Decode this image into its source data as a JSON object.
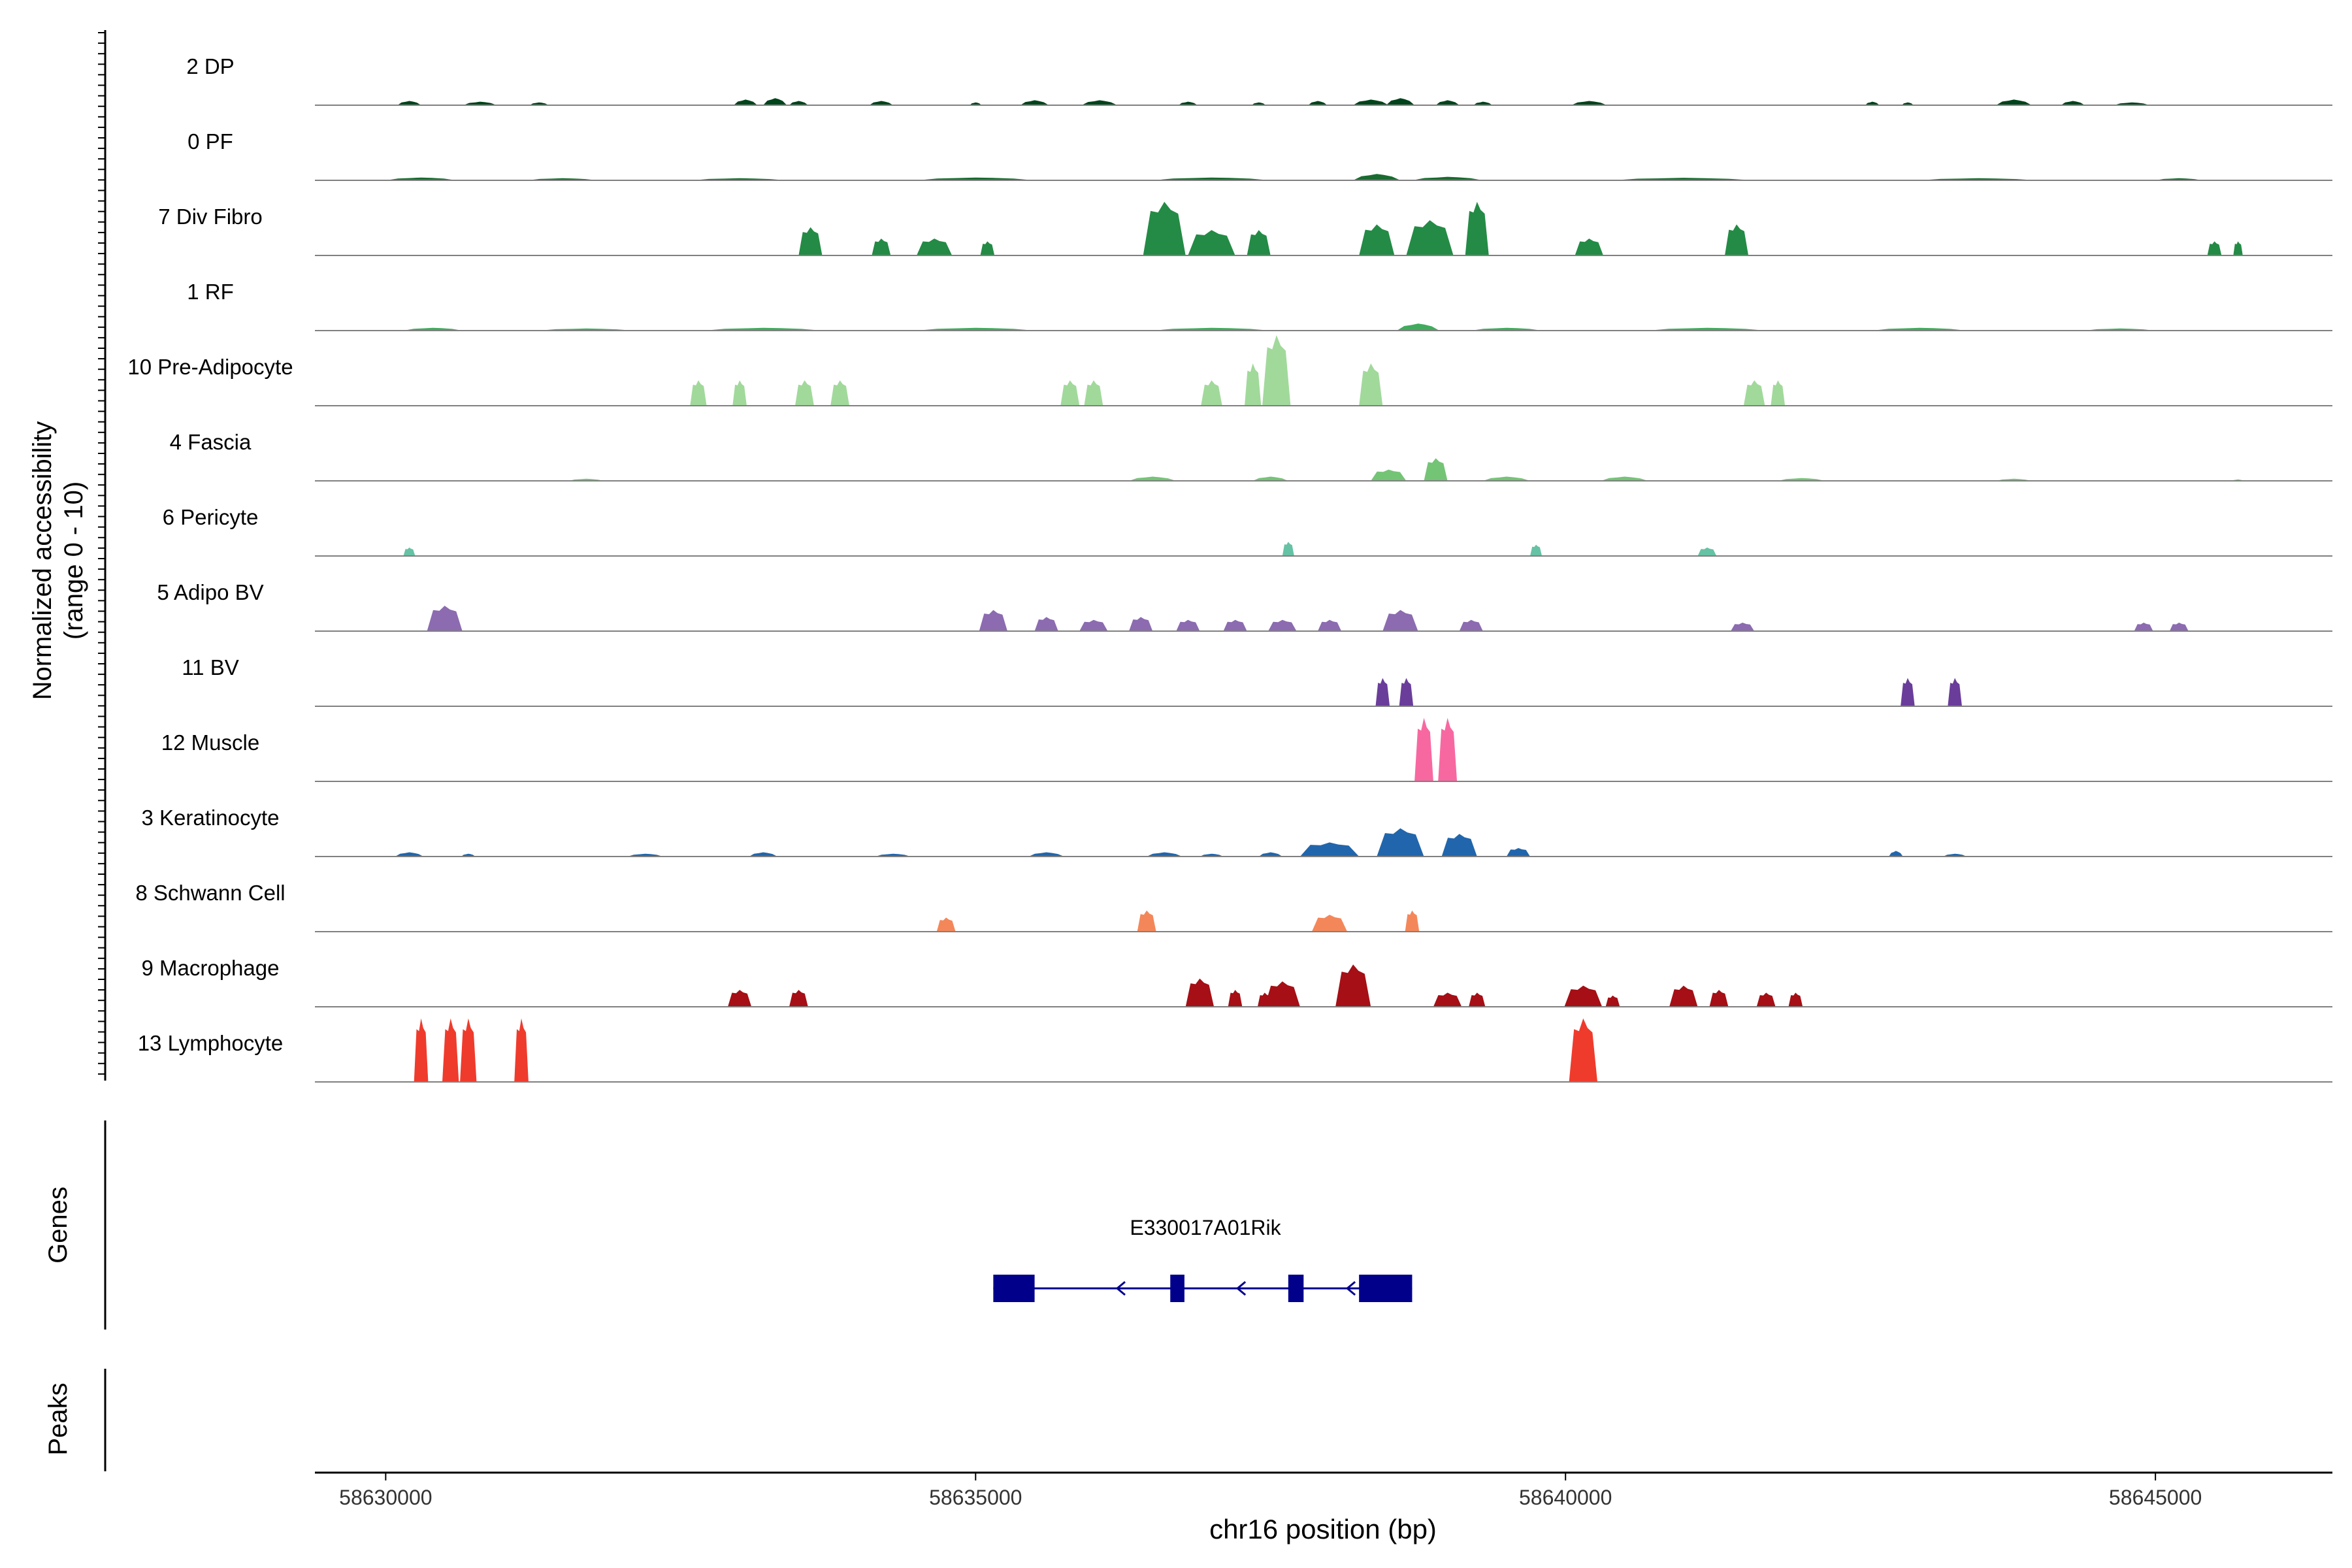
{
  "chart_data": {
    "type": "area",
    "y_axis_label_line1": "Normalized accessibility",
    "y_axis_label_line2": "(range 0 - 10)",
    "x_axis_label": "chr16 position (bp)",
    "xlim": [
      58629400,
      58646500
    ],
    "x_ticks": [
      58630000,
      58635000,
      58640000,
      58645000
    ],
    "x_tick_labels": [
      "58630000",
      "58635000",
      "58640000",
      "58645000"
    ],
    "ylim": [
      0,
      10
    ],
    "tracks": [
      {
        "name": "2 DP",
        "color": "#00441B",
        "peaks": [
          [
            58630200,
            3,
            1
          ],
          [
            58630800,
            2.5,
            1.4
          ],
          [
            58631300,
            2,
            0.8
          ],
          [
            58633050,
            4,
            1
          ],
          [
            58633300,
            5,
            1
          ],
          [
            58633500,
            3,
            0.8
          ],
          [
            58634200,
            3,
            1
          ],
          [
            58635000,
            2,
            0.5
          ],
          [
            58635500,
            3.5,
            1.2
          ],
          [
            58636050,
            3.5,
            1.5
          ],
          [
            58636800,
            2.5,
            0.8
          ],
          [
            58637400,
            2,
            0.6
          ],
          [
            58637900,
            3,
            0.8
          ],
          [
            58638350,
            4,
            1.5
          ],
          [
            58638600,
            5,
            1.2
          ],
          [
            58639000,
            3.5,
            1
          ],
          [
            58639300,
            2.5,
            0.8
          ],
          [
            58640200,
            3,
            1.5
          ],
          [
            58642600,
            2.5,
            0.6
          ],
          [
            58642900,
            2,
            0.5
          ],
          [
            58643800,
            4,
            1.5
          ],
          [
            58644300,
            3,
            1
          ],
          [
            58644800,
            2,
            1.5
          ]
        ]
      },
      {
        "name": "0 PF",
        "color": "#1A6B30",
        "peaks": [
          [
            58630300,
            2,
            3
          ],
          [
            58631500,
            1.5,
            3
          ],
          [
            58633000,
            1.5,
            4
          ],
          [
            58635000,
            2,
            5
          ],
          [
            58637000,
            2,
            5
          ],
          [
            58638400,
            4.5,
            2
          ],
          [
            58639000,
            2.5,
            3
          ],
          [
            58641000,
            1.8,
            6
          ],
          [
            58643500,
            1.5,
            5
          ],
          [
            58645200,
            1.5,
            2
          ]
        ]
      },
      {
        "name": "7 Div Fibro",
        "color": "#238B45",
        "peaks": [
          [
            58633600,
            20,
            1
          ],
          [
            58634200,
            12,
            0.8
          ],
          [
            58634650,
            12,
            1.5
          ],
          [
            58635100,
            10,
            0.6
          ],
          [
            58636600,
            38,
            1.8
          ],
          [
            58637000,
            18,
            2
          ],
          [
            58637400,
            18,
            1
          ],
          [
            58638400,
            22,
            1.5
          ],
          [
            58638850,
            25,
            2
          ],
          [
            58639250,
            38,
            1
          ],
          [
            58640200,
            12,
            1.2
          ],
          [
            58641450,
            22,
            1
          ],
          [
            58645500,
            10,
            0.6
          ],
          [
            58645700,
            10,
            0.4
          ]
        ]
      },
      {
        "name": "1 RF",
        "color": "#41AB5D",
        "peaks": [
          [
            58630400,
            2,
            2.5
          ],
          [
            58631700,
            1.5,
            4
          ],
          [
            58633200,
            2,
            5
          ],
          [
            58635000,
            2,
            5
          ],
          [
            58637000,
            2,
            5
          ],
          [
            58638750,
            5,
            1.8
          ],
          [
            58639500,
            2,
            3
          ],
          [
            58641200,
            2,
            5
          ],
          [
            58643000,
            2,
            4
          ],
          [
            58644700,
            1.5,
            3
          ]
        ]
      },
      {
        "name": "10 Pre-Adipocyte",
        "color": "#A1D99B",
        "peaks": [
          [
            58632650,
            18,
            0.7
          ],
          [
            58633000,
            18,
            0.6
          ],
          [
            58633550,
            18,
            0.8
          ],
          [
            58633850,
            18,
            0.8
          ],
          [
            58635800,
            18,
            0.8
          ],
          [
            58636000,
            18,
            0.8
          ],
          [
            58637000,
            18,
            0.9
          ],
          [
            58637350,
            30,
            0.7
          ],
          [
            58637550,
            50,
            1.2
          ],
          [
            58638350,
            30,
            1
          ],
          [
            58641600,
            18,
            0.9
          ],
          [
            58641800,
            18,
            0.6
          ]
        ]
      },
      {
        "name": "4 Fascia",
        "color": "#74C476",
        "peaks": [
          [
            58631700,
            1.5,
            1.5
          ],
          [
            58636500,
            3,
            2
          ],
          [
            58637500,
            3,
            1.5
          ],
          [
            58638500,
            8,
            1.5
          ],
          [
            58638900,
            16,
            1
          ],
          [
            58639500,
            3,
            2
          ],
          [
            58640500,
            3,
            2
          ],
          [
            58642000,
            2,
            2
          ],
          [
            58643800,
            1.5,
            1.5
          ],
          [
            58645700,
            1,
            0.5
          ]
        ]
      },
      {
        "name": "6 Pericyte",
        "color": "#66C2A4",
        "peaks": [
          [
            58630200,
            6,
            0.5
          ],
          [
            58637650,
            10,
            0.5
          ],
          [
            58639750,
            8,
            0.5
          ],
          [
            58641200,
            6,
            0.8
          ]
        ]
      },
      {
        "name": "5 Adipo BV",
        "color": "#8C6BB1",
        "peaks": [
          [
            58630500,
            18,
            1.5
          ],
          [
            58635150,
            15,
            1.2
          ],
          [
            58635600,
            10,
            1
          ],
          [
            58636000,
            8,
            1.2
          ],
          [
            58636400,
            10,
            1
          ],
          [
            58636800,
            8,
            1
          ],
          [
            58637200,
            8,
            1
          ],
          [
            58637600,
            8,
            1.2
          ],
          [
            58638000,
            8,
            1
          ],
          [
            58638600,
            15,
            1.5
          ],
          [
            58639200,
            8,
            1
          ],
          [
            58641500,
            6,
            1
          ],
          [
            58644900,
            6,
            0.8
          ],
          [
            58645200,
            6,
            0.8
          ]
        ]
      },
      {
        "name": "11 BV",
        "color": "#6A3D9A",
        "peaks": [
          [
            58638450,
            20,
            0.6
          ],
          [
            58638650,
            20,
            0.6
          ],
          [
            58642900,
            20,
            0.6
          ],
          [
            58643300,
            20,
            0.6
          ]
        ]
      },
      {
        "name": "12 Muscle",
        "color": "#F768A1",
        "peaks": [
          [
            58638800,
            45,
            0.8
          ],
          [
            58639000,
            45,
            0.8
          ]
        ]
      },
      {
        "name": "3 Keratinocyte",
        "color": "#2166AC",
        "peaks": [
          [
            58630200,
            3,
            1.2
          ],
          [
            58630700,
            2,
            0.6
          ],
          [
            58632200,
            2,
            1.5
          ],
          [
            58633200,
            3,
            1.2
          ],
          [
            58634300,
            2,
            1.5
          ],
          [
            58635600,
            3,
            1.5
          ],
          [
            58636600,
            3,
            1.5
          ],
          [
            58637000,
            2,
            1
          ],
          [
            58637500,
            3,
            1
          ],
          [
            58638000,
            10,
            2.5
          ],
          [
            58638600,
            20,
            2
          ],
          [
            58639100,
            16,
            1.5
          ],
          [
            58639600,
            6,
            1
          ],
          [
            58642800,
            4,
            0.6
          ],
          [
            58643300,
            2,
            1
          ]
        ]
      },
      {
        "name": "8 Schwann Cell",
        "color": "#F4875A",
        "peaks": [
          [
            58634750,
            10,
            0.8
          ],
          [
            58636450,
            15,
            0.8
          ],
          [
            58638000,
            12,
            1.5
          ],
          [
            58638700,
            15,
            0.6
          ]
        ]
      },
      {
        "name": "9 Macrophage",
        "color": "#A50F15",
        "peaks": [
          [
            58633000,
            12,
            1
          ],
          [
            58633500,
            12,
            0.8
          ],
          [
            58636900,
            20,
            1.2
          ],
          [
            58637200,
            12,
            0.6
          ],
          [
            58637450,
            10,
            0.6
          ],
          [
            58637600,
            18,
            1.5
          ],
          [
            58638200,
            30,
            1.5
          ],
          [
            58639000,
            10,
            1.2
          ],
          [
            58639250,
            10,
            0.7
          ],
          [
            58640150,
            15,
            1.6
          ],
          [
            58640400,
            8,
            0.6
          ],
          [
            58641000,
            15,
            1.2
          ],
          [
            58641300,
            12,
            0.8
          ],
          [
            58641700,
            10,
            0.8
          ],
          [
            58641950,
            10,
            0.6
          ]
        ]
      },
      {
        "name": "13 Lymphocyte",
        "color": "#EF3B2C",
        "peaks": [
          [
            58630300,
            45,
            0.6
          ],
          [
            58630550,
            45,
            0.7
          ],
          [
            58630700,
            45,
            0.7
          ],
          [
            58631150,
            45,
            0.6
          ],
          [
            58640150,
            45,
            1.2
          ]
        ]
      }
    ],
    "genes_track_label": "Genes",
    "peaks_track_label": "Peaks",
    "gene": {
      "name": "E330017A01Rik",
      "color": "#00008B",
      "start": 58635150,
      "end": 58638700,
      "strand": "-",
      "exons": [
        [
          58635150,
          58635500
        ],
        [
          58636650,
          58636770
        ],
        [
          58637650,
          58637780
        ],
        [
          58638250,
          58638700
        ]
      ],
      "arrows": [
        58636200,
        58637220,
        58638150
      ]
    }
  }
}
